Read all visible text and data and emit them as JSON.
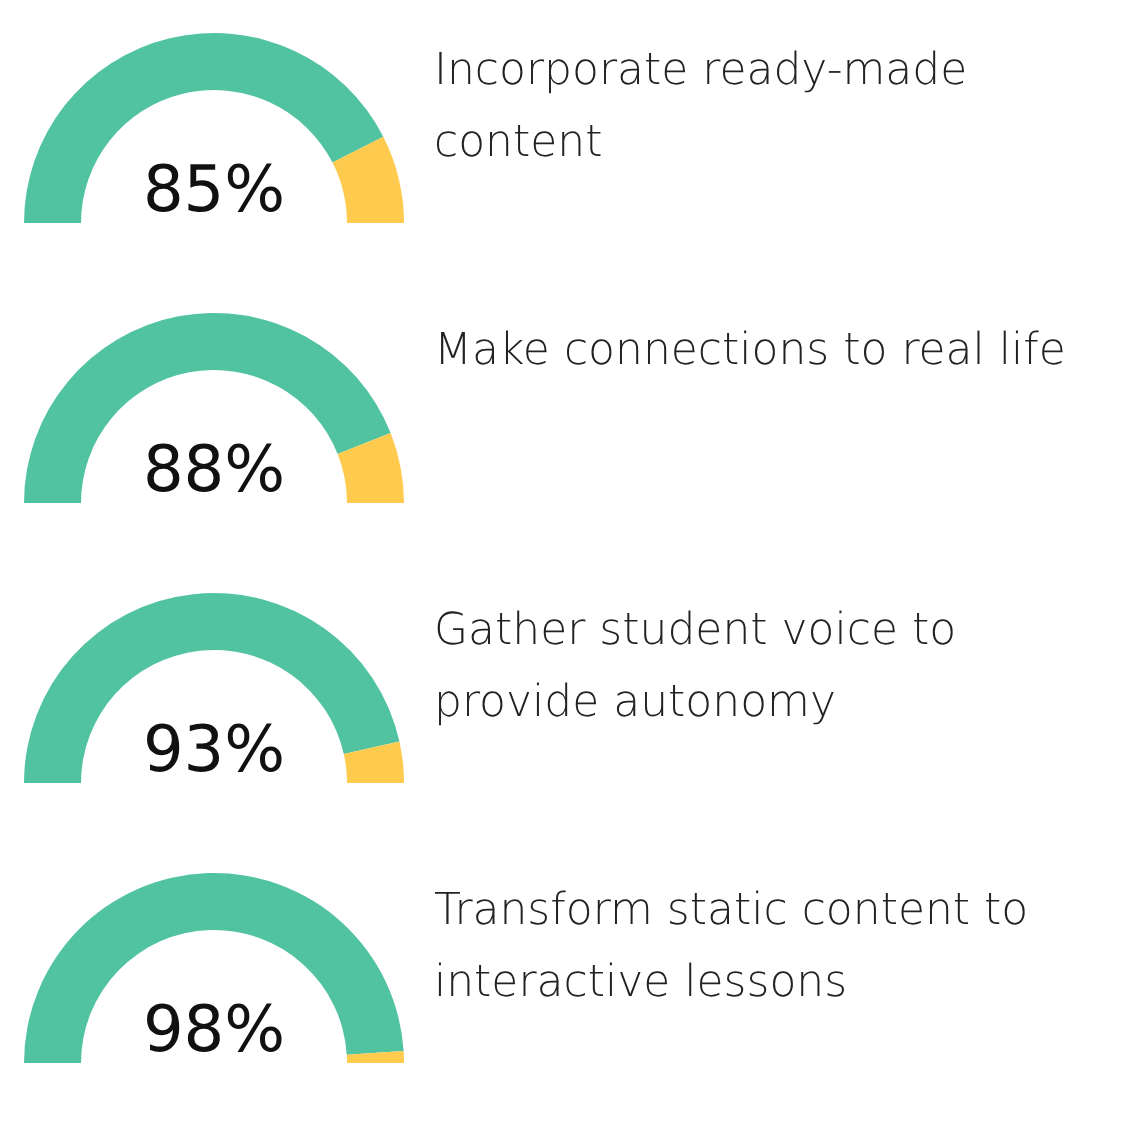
{
  "chart_data": [
    {
      "type": "donut",
      "title": "Incorporate ready-made content",
      "categories": [
        null,
        null
      ],
      "values": [
        85,
        15
      ],
      "colors": [
        "#52c3a1",
        "#fecb4f"
      ],
      "value_labels": [
        "85%",
        null
      ]
    },
    {
      "type": "donut",
      "title": "Make connections to real life",
      "categories": [
        null,
        null
      ],
      "values": [
        88,
        12
      ],
      "colors": [
        "#52c3a1",
        "#fecb4f"
      ],
      "value_labels": [
        "88%",
        null
      ]
    },
    {
      "type": "donut",
      "title": "Gather student voice to provide autonomy",
      "categories": [
        null,
        null
      ],
      "values": [
        93,
        7
      ],
      "colors": [
        "#52c3a1",
        "#fecb4f"
      ],
      "value_labels": [
        "93%",
        null
      ]
    },
    {
      "type": "donut",
      "title": "Transform static content to interactive lessons",
      "categories": [
        null,
        null
      ],
      "values": [
        98,
        2
      ],
      "colors": [
        "#52c3a1",
        "#fecb4f"
      ],
      "value_labels": [
        "98%",
        null
      ]
    }
  ]
}
